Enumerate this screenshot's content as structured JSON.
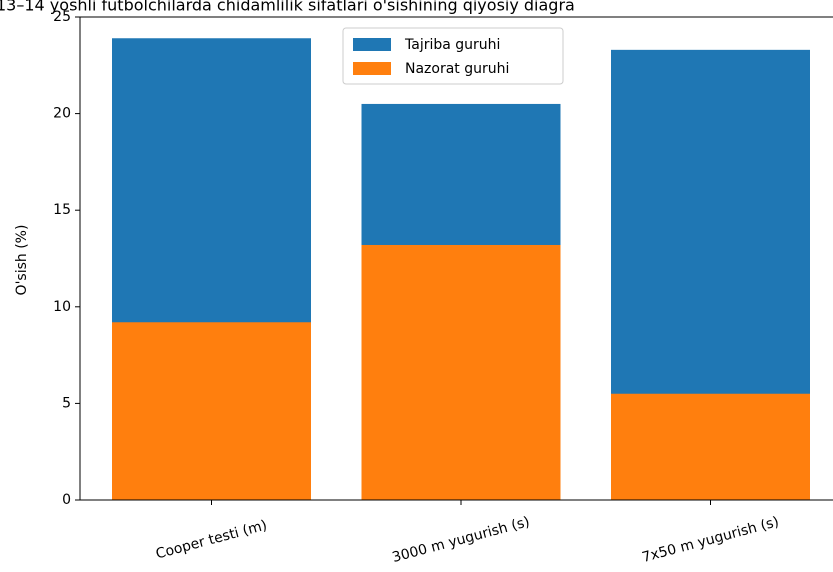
{
  "chart_data": {
    "type": "bar",
    "title": "13–14 yoshli futbolchilarda chidamlilik sifatlari o'sishining qiyosiy diagra",
    "ylabel": "O'sish (%)",
    "categories": [
      "Cooper testi (m)",
      "3000 m yugurish (s)",
      "7x50 m yugurish (s)"
    ],
    "series": [
      {
        "name": "Tajriba guruhi",
        "color": "#1f77b4",
        "values": [
          23.9,
          20.5,
          23.3
        ]
      },
      {
        "name": "Nazorat guruhi",
        "color": "#ff7f0e",
        "values": [
          9.2,
          13.2,
          5.5
        ]
      }
    ],
    "ylim": [
      0,
      25
    ],
    "yticks": [
      0,
      5,
      10,
      15,
      20,
      25
    ],
    "legend": "upper center"
  }
}
